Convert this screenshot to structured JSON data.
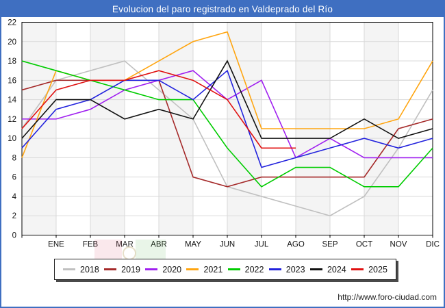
{
  "window": {
    "title": "Evolucion del paro registrado en Valdeprado del Río"
  },
  "chart_data": {
    "type": "line",
    "title": "Evolucion del paro registrado en Valdeprado del Río",
    "categories": [
      "ENE",
      "FEB",
      "MAR",
      "ABR",
      "MAY",
      "JUN",
      "JUL",
      "AGO",
      "SEP",
      "OCT",
      "NOV",
      "DIC"
    ],
    "lead_in_note": "first value of each series is drawn on the left axis edge (previous December), followed by ENE..DIC",
    "ylim": [
      0,
      22
    ],
    "ytick_step": 2,
    "grid": true,
    "legend_position": "bottom",
    "series": [
      {
        "name": "2018",
        "color": "#c0c0c0",
        "values": [
          11,
          16,
          17,
          18,
          15,
          12,
          5,
          4,
          3,
          2,
          4,
          9,
          15
        ]
      },
      {
        "name": "2019",
        "color": "#a52a2a",
        "values": [
          15,
          16,
          16,
          16,
          16,
          6,
          5,
          6,
          6,
          6,
          6,
          11,
          12
        ]
      },
      {
        "name": "2020",
        "color": "#a020f0",
        "values": [
          12,
          12,
          13,
          15,
          16,
          17,
          14,
          16,
          8,
          10,
          8,
          8,
          8
        ]
      },
      {
        "name": "2021",
        "color": "#ffa510",
        "values": [
          8,
          17,
          16,
          16,
          18,
          20,
          21,
          11,
          11,
          11,
          11,
          12,
          18
        ]
      },
      {
        "name": "2022",
        "color": "#00cc00",
        "values": [
          18,
          17,
          16,
          15,
          14,
          14,
          9,
          5,
          7,
          7,
          5,
          5,
          9
        ]
      },
      {
        "name": "2023",
        "color": "#2222dd",
        "values": [
          9,
          13,
          14,
          16,
          16,
          14,
          17,
          7,
          8,
          9,
          10,
          9,
          10
        ]
      },
      {
        "name": "2024",
        "color": "#111111",
        "values": [
          10,
          14,
          14,
          12,
          13,
          12,
          18,
          10,
          10,
          10,
          12,
          10,
          11
        ]
      },
      {
        "name": "2025",
        "color": "#e01010",
        "values": [
          11,
          15,
          16,
          16,
          17,
          16,
          14,
          9,
          9
        ]
      }
    ]
  },
  "theme": {
    "titlebar": "#3f6fc1",
    "frame_border": "#3f6fc1",
    "grid": "#d9d9d9",
    "band": "#f4f4f4",
    "axis": "#000000"
  },
  "footer": {
    "url": "http://www.foro-ciudad.com"
  }
}
